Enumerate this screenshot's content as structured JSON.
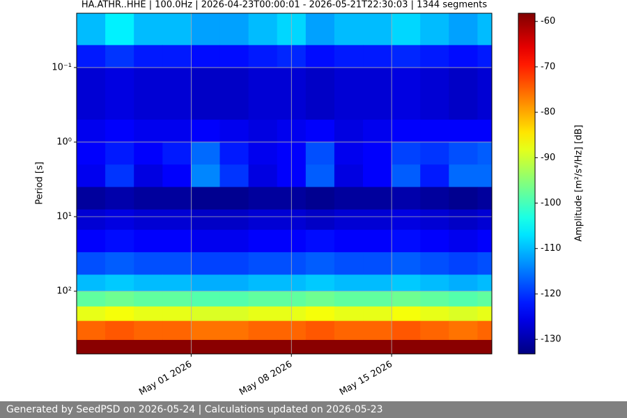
{
  "chart_data": {
    "type": "spectrogram",
    "title": "HA.ATHR..HHE | 100.0Hz | 2026-04-23T00:00:01 - 2026-05-21T22:30:03 | 1344 segments",
    "y_label": "Period [s]",
    "colorbar_label": "Amplitude [m²/s⁴/Hz] [dB]",
    "colormap": "jet",
    "y_log": true,
    "y_inverted": true,
    "grid": true,
    "xlim": [
      "2026-04-23",
      "2026-05-22"
    ],
    "xticks": [
      {
        "value": "2026-05-01",
        "label": "May 01 2026"
      },
      {
        "value": "2026-05-08",
        "label": "May 08 2026"
      },
      {
        "value": "2026-05-15",
        "label": "May 15 2026"
      }
    ],
    "ylim": [
      0.0187,
      693
    ],
    "yticks": [
      {
        "value": 0.1,
        "label": "10⁻¹"
      },
      {
        "value": 1,
        "label": "10⁰"
      },
      {
        "value": 10,
        "label": "10¹"
      },
      {
        "value": 100,
        "label": "10²"
      }
    ],
    "clim": [
      -133.2,
      -58.2
    ],
    "cticks": [
      -60,
      -70,
      -80,
      -90,
      -100,
      -110,
      -120,
      -130
    ],
    "x_bins": [
      "2026-04-23",
      "2026-04-25",
      "2026-04-27",
      "2026-04-29",
      "2026-05-01",
      "2026-05-03",
      "2026-05-05",
      "2026-05-07",
      "2026-05-09",
      "2026-05-11",
      "2026-05-13",
      "2026-05-15",
      "2026-05-17",
      "2026-05-19",
      "2026-05-21",
      "2026-05-22"
    ],
    "y_bins": [
      0.0187,
      0.05,
      0.1,
      0.5,
      1,
      2,
      4,
      8,
      15,
      30,
      60,
      100,
      160,
      250,
      450,
      693
    ],
    "z": [
      [
        -110,
        -106,
        -110,
        -110,
        -112,
        -112,
        -110,
        -108,
        -112,
        -110,
        -110,
        -108,
        -110,
        -112,
        -110
      ],
      [
        -122,
        -120,
        -122,
        -122,
        -123,
        -123,
        -122,
        -121,
        -123,
        -122,
        -122,
        -121,
        -122,
        -123,
        -122
      ],
      [
        -127,
        -126,
        -127,
        -127,
        -128,
        -128,
        -127,
        -127,
        -128,
        -127,
        -127,
        -126,
        -127,
        -128,
        -127
      ],
      [
        -125,
        -124,
        -125,
        -125,
        -124,
        -125,
        -126,
        -125,
        -124,
        -126,
        -125,
        -124,
        -124,
        -124,
        -124
      ],
      [
        -124,
        -122,
        -124,
        -122,
        -116,
        -122,
        -125,
        -124,
        -118,
        -125,
        -124,
        -119,
        -120,
        -118,
        -117
      ],
      [
        -125,
        -120,
        -126,
        -124,
        -114,
        -120,
        -126,
        -124,
        -117,
        -126,
        -124,
        -117,
        -122,
        -116,
        -116
      ],
      [
        -131,
        -130,
        -131,
        -131,
        -132,
        -132,
        -131,
        -131,
        -132,
        -131,
        -131,
        -130,
        -131,
        -132,
        -131
      ],
      [
        -127,
        -126,
        -127,
        -127,
        -128,
        -128,
        -127,
        -127,
        -128,
        -127,
        -127,
        -126,
        -127,
        -128,
        -127
      ],
      [
        -124,
        -123,
        -124,
        -124,
        -125,
        -125,
        -124,
        -124,
        -123,
        -124,
        -124,
        -123,
        -124,
        -125,
        -124
      ],
      [
        -118,
        -117,
        -118,
        -118,
        -119,
        -119,
        -118,
        -118,
        -117,
        -118,
        -118,
        -117,
        -118,
        -119,
        -118
      ],
      [
        -110,
        -109,
        -110,
        -110,
        -111,
        -111,
        -110,
        -110,
        -109,
        -110,
        -110,
        -109,
        -110,
        -111,
        -110
      ],
      [
        -98,
        -97,
        -98,
        -98,
        -99,
        -99,
        -98,
        -98,
        -97,
        -98,
        -98,
        -97,
        -98,
        -99,
        -98
      ],
      [
        -88,
        -87,
        -88,
        -88,
        -89,
        -89,
        -88,
        -88,
        -87,
        -88,
        -88,
        -87,
        -88,
        -89,
        -88
      ],
      [
        -75,
        -74,
        -75,
        -75,
        -76,
        -76,
        -75,
        -75,
        -74,
        -75,
        -75,
        -74,
        -75,
        -76,
        -75
      ],
      [
        -59,
        -59,
        -59,
        -59,
        -59,
        -59,
        -59,
        -59,
        -59,
        -59,
        -59,
        -59,
        -59,
        -59,
        -59
      ]
    ]
  },
  "footer": "Generated by SeedPSD on 2026-05-24 | Calculations updated on 2026-05-23"
}
